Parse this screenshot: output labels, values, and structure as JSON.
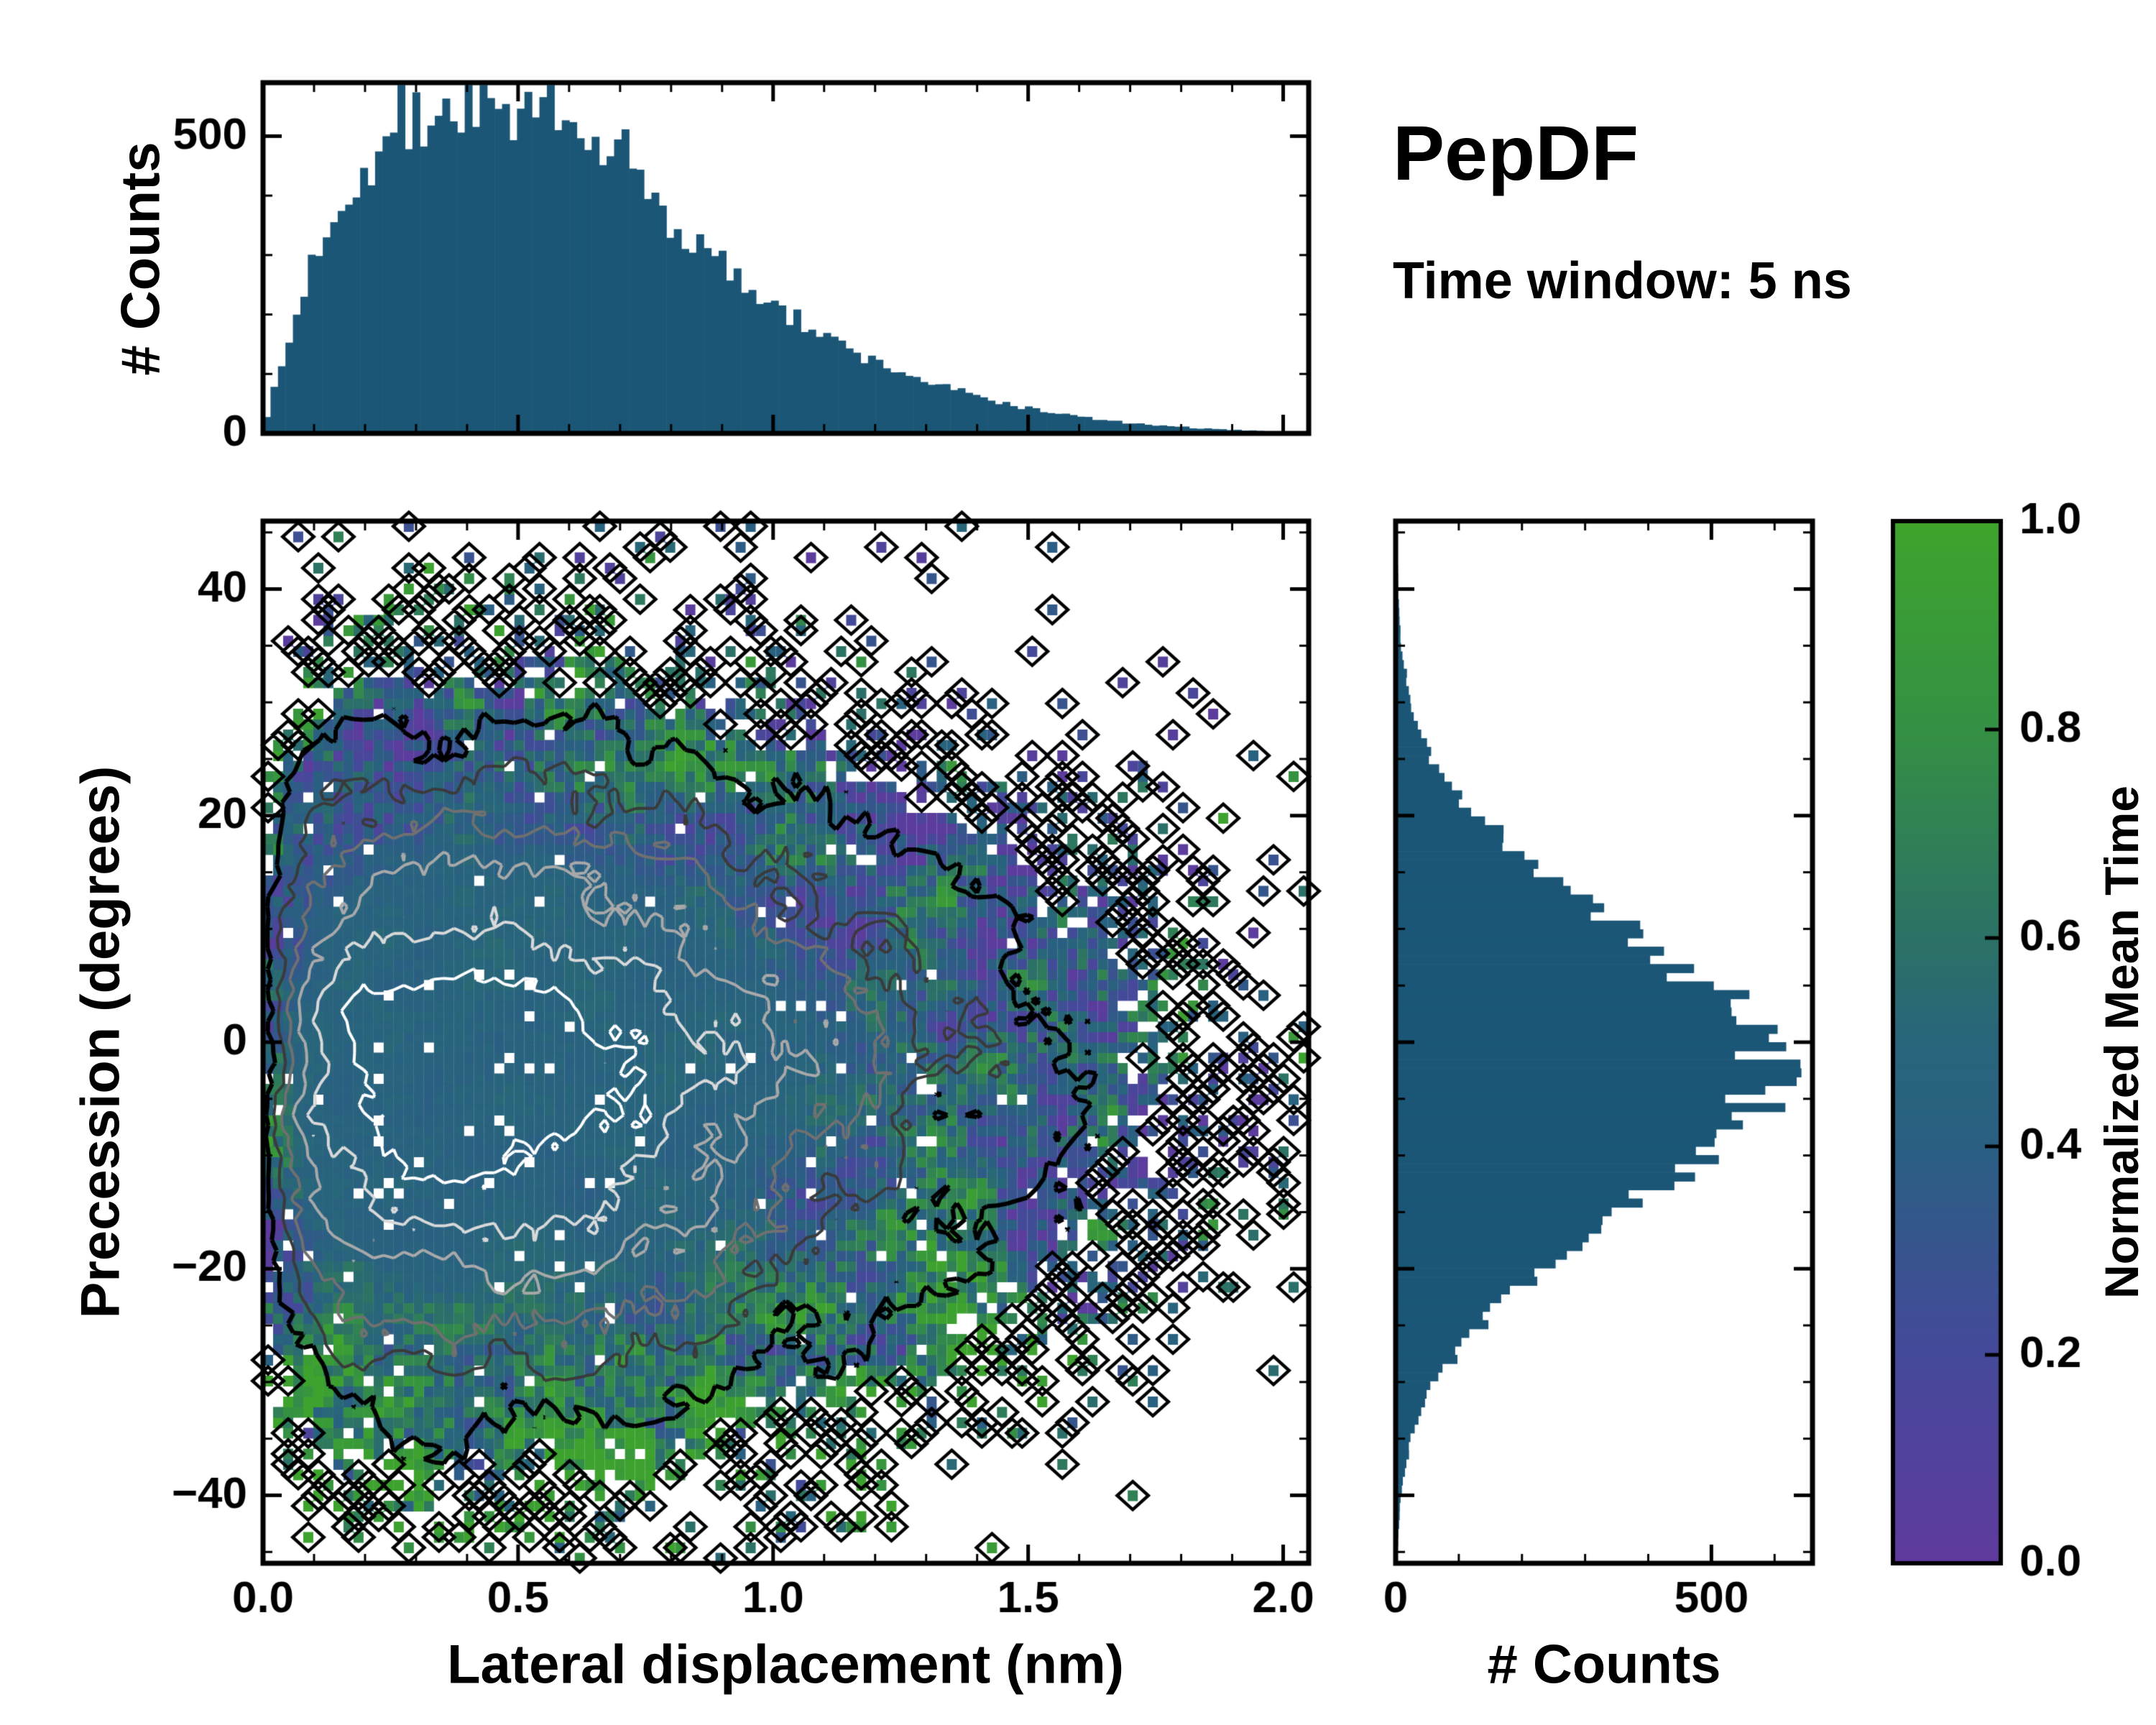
{
  "header": {
    "title": "PepDF",
    "subtitle": "Time window: 5 ns"
  },
  "chart_data": [
    {
      "id": "top-histogram",
      "type": "bar",
      "orientation": "vertical",
      "ylabel": "# Counts",
      "xlim": [
        0,
        2.05
      ],
      "ylim": [
        0,
        590
      ],
      "yticks": [
        0,
        500
      ],
      "ytick_minor_step": 100,
      "bins": 140,
      "noise": 0.1,
      "seed": 7,
      "bar_color": "#1b5676",
      "envelope": [
        [
          0,
          10
        ],
        [
          0.05,
          150
        ],
        [
          0.1,
          300
        ],
        [
          0.15,
          390
        ],
        [
          0.2,
          445
        ],
        [
          0.25,
          490
        ],
        [
          0.3,
          520
        ],
        [
          0.35,
          540
        ],
        [
          0.42,
          550
        ],
        [
          0.5,
          532
        ],
        [
          0.6,
          502
        ],
        [
          0.7,
          452
        ],
        [
          0.75,
          418
        ],
        [
          0.8,
          352
        ],
        [
          0.9,
          282
        ],
        [
          1,
          215
        ],
        [
          1.1,
          162
        ],
        [
          1.2,
          120
        ],
        [
          1.3,
          88
        ],
        [
          1.4,
          62
        ],
        [
          1.5,
          42
        ],
        [
          1.6,
          28
        ],
        [
          1.7,
          17
        ],
        [
          1.8,
          10
        ],
        [
          1.9,
          6
        ],
        [
          2,
          3
        ],
        [
          2.05,
          2
        ]
      ]
    },
    {
      "id": "main-heatmap",
      "type": "heatmap",
      "xlabel": "Lateral displacement (nm)",
      "ylabel": "Precession (degrees)",
      "xlim": [
        0,
        2.05
      ],
      "ylim": [
        -46,
        46
      ],
      "xticks": [
        0,
        0.5,
        1,
        1.5,
        2
      ],
      "yticks": [
        -40,
        -20,
        0,
        20,
        40
      ],
      "xtick_minor_step": 0.1,
      "ytick_minor_step": 5,
      "grid": [
        104,
        100
      ],
      "base_value": 0.46,
      "occupancy_gain": 25,
      "seed": 11,
      "value_label": "Normalized Mean Time",
      "contour_levels": [
        0.75,
        0.55,
        0.38,
        0.24,
        0.13,
        0.05
      ],
      "contour_colors": [
        "#ffffff",
        "#d9d9d9",
        "#a9a9a9",
        "#707070",
        "#3a3a3a",
        "#000000"
      ]
    },
    {
      "id": "right-histogram",
      "type": "bar",
      "orientation": "horizontal",
      "xlabel": "# Counts",
      "xlim": [
        0,
        660
      ],
      "ylim": [
        -46,
        46
      ],
      "xticks": [
        0,
        500
      ],
      "xtick_minor_step": 100,
      "bins": 120,
      "noise": 0.1,
      "seed": 13,
      "bar_color": "#1b5676",
      "envelope": [
        [
          -46,
          2
        ],
        [
          -40,
          8
        ],
        [
          -35,
          25
        ],
        [
          -30,
          62
        ],
        [
          -25,
          132
        ],
        [
          -20,
          232
        ],
        [
          -15,
          362
        ],
        [
          -10,
          482
        ],
        [
          -6,
          562
        ],
        [
          -3,
          600
        ],
        [
          0,
          588
        ],
        [
          3,
          540
        ],
        [
          6,
          470
        ],
        [
          10,
          362
        ],
        [
          15,
          232
        ],
        [
          20,
          122
        ],
        [
          25,
          56
        ],
        [
          30,
          22
        ],
        [
          35,
          9
        ],
        [
          40,
          4
        ],
        [
          46,
          2
        ]
      ]
    },
    {
      "id": "colorbar",
      "type": "colorbar",
      "label": "Normalized Mean Time",
      "lim": [
        0,
        1
      ],
      "ticks": [
        0,
        0.2,
        0.4,
        0.6,
        0.8,
        1
      ],
      "cmap": [
        [
          0,
          "#5e3a9c"
        ],
        [
          0.2,
          "#45499a"
        ],
        [
          0.4,
          "#2a5f82"
        ],
        [
          0.5,
          "#28657b"
        ],
        [
          0.6,
          "#2c7166"
        ],
        [
          0.8,
          "#349044"
        ],
        [
          1,
          "#3ea42c"
        ]
      ]
    }
  ]
}
